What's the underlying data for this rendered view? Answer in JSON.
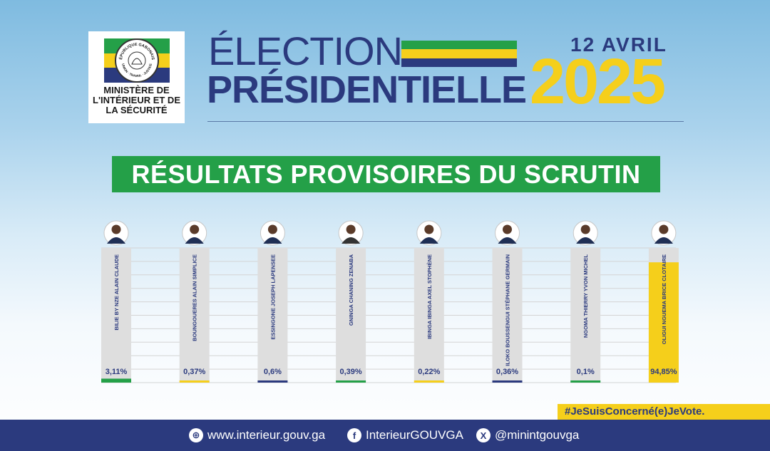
{
  "logo": {
    "seal_text_top": "RÉPUBLIQUE GABONAISE",
    "seal_text_bottom": "UNION · TRAVAIL · JUSTICE",
    "ministry_line1": "MINISTÈRE DE",
    "ministry_line2": "L'INTÉRIEUR ET DE",
    "ministry_line3": "LA SÉCURITÉ"
  },
  "header": {
    "title_line1": "ÉLECTION",
    "title_line2": "PRÉSIDENTIELLE",
    "date": "12 AVRIL",
    "year": "2025"
  },
  "banner": "RÉSULTATS PROVISOIRES DU SCRUTIN",
  "chart_data": {
    "type": "bar",
    "categories": [
      "BILIE BY NZE ALAIN CLAUDE",
      "BOUNGOUERES ALAIN SIMPLICE",
      "ESSINGONE JOSEPH LAPENSEE",
      "GNINGA CHANING ZENABA",
      "IBINGA IBINGA AXEL STOPHÈNE",
      "ILOKO BOUSSENGUI STÉPHANE GERMAIN",
      "NGOMA THIERRY YVON MICHEL",
      "OLIGUI NGUEMA BRICE CLOTAIRE"
    ],
    "values": [
      3.11,
      0.37,
      0.6,
      0.39,
      0.22,
      0.36,
      0.1,
      94.85
    ],
    "value_labels": [
      "3,11%",
      "0,37%",
      "0,6%",
      "0,39%",
      "0,22%",
      "0,36%",
      "0,1%",
      "94,85%"
    ],
    "bar_colors": [
      "#24a048",
      "#f5cf1b",
      "#2b3a7e",
      "#24a048",
      "#f5cf1b",
      "#2b3a7e",
      "#24a048",
      "#f5cf1b"
    ],
    "ylim": [
      0,
      100
    ],
    "grid": true
  },
  "hashtag": "#JeSuisConcerné(e)JeVote.",
  "footer": {
    "website": "www.interieur.gouv.ga",
    "facebook": "InterieurGOUVGA",
    "x": "@minintgouvga",
    "web_icon_glyph": "⊕",
    "facebook_icon_glyph": "f",
    "x_icon_glyph": "X"
  },
  "colors": {
    "green": "#24a048",
    "yellow": "#f5cf1b",
    "blue": "#2b3a7e",
    "bar_track": "#dedede"
  }
}
